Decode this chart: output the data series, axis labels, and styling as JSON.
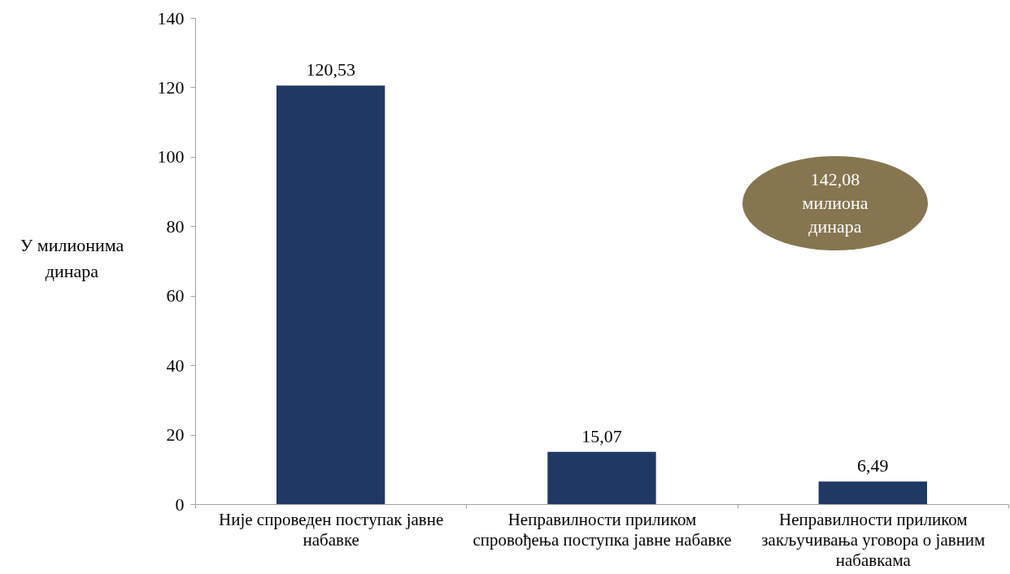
{
  "chart_data": {
    "type": "bar",
    "ylabel": "У милионима динара",
    "categories": [
      "Није спроведен поступак јавне набавке",
      "Неправилности приликом спровођења поступка јавне набавке",
      "Неправилности приликом закључивања уговора о јавним набавкама"
    ],
    "values": [
      120.53,
      15.07,
      6.49
    ],
    "value_labels": [
      "120,53",
      "15,07",
      "6,49"
    ],
    "color": "#1f3864",
    "ylim": [
      0,
      140
    ],
    "yticks": [
      0,
      20,
      40,
      60,
      80,
      100,
      120,
      140
    ],
    "annotations": [
      "142,08 милиона динара"
    ]
  }
}
